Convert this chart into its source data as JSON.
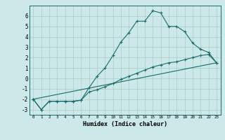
{
  "xlabel": "Humidex (Indice chaleur)",
  "bg_color": "#cce8e8",
  "line_color": "#1a6b6b",
  "grid_color": "#aacccc",
  "xlim": [
    -0.5,
    23.5
  ],
  "ylim": [
    -3.5,
    7.0
  ],
  "yticks": [
    -3,
    -2,
    -1,
    0,
    1,
    2,
    3,
    4,
    5,
    6
  ],
  "xticks": [
    0,
    1,
    2,
    3,
    4,
    5,
    6,
    7,
    8,
    9,
    10,
    11,
    12,
    13,
    14,
    15,
    16,
    17,
    18,
    19,
    20,
    21,
    22,
    23
  ],
  "line1_x": [
    0,
    1,
    2,
    3,
    4,
    5,
    6,
    7,
    8,
    9,
    10,
    11,
    12,
    13,
    14,
    15,
    16,
    17,
    18,
    19,
    20,
    21,
    22,
    23
  ],
  "line1_y": [
    -2.0,
    -3.0,
    -2.2,
    -2.2,
    -2.2,
    -2.2,
    -2.1,
    -0.9,
    0.2,
    1.0,
    2.2,
    3.5,
    4.4,
    5.5,
    5.5,
    6.5,
    6.3,
    5.0,
    5.0,
    4.5,
    3.4,
    2.8,
    2.5,
    1.5
  ],
  "line2_x": [
    0,
    1,
    2,
    3,
    4,
    5,
    6,
    7,
    8,
    9,
    10,
    11,
    12,
    13,
    14,
    15,
    16,
    17,
    18,
    19,
    20,
    21,
    22,
    23
  ],
  "line2_y": [
    -2.0,
    -3.0,
    -2.2,
    -2.2,
    -2.2,
    -2.2,
    -2.1,
    -1.3,
    -1.1,
    -0.8,
    -0.5,
    -0.1,
    0.2,
    0.5,
    0.8,
    1.1,
    1.3,
    1.5,
    1.6,
    1.8,
    2.0,
    2.2,
    2.3,
    1.5
  ],
  "line3_x": [
    0,
    23
  ],
  "line3_y": [
    -2.0,
    1.5
  ]
}
